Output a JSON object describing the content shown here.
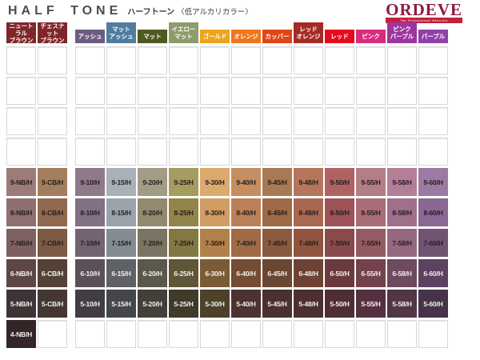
{
  "header": {
    "title_en": "HALF TONE",
    "title_jp": "ハーフトーン",
    "subtitle": "〈低アルカリカラー〉",
    "brand": {
      "name": "ORDEVE",
      "tagline": "The Professional Haircolor",
      "name_color": "#8e1a3d",
      "tagline_bg": "#c4203e"
    }
  },
  "columns": [
    {
      "label": "ニュートラル\nブラウン",
      "color": "#7f2629"
    },
    {
      "label": "チェスナット\nブラウン",
      "color": "#7f2629"
    },
    {
      "label": "アッシュ",
      "color": "#6d5c82"
    },
    {
      "label": "マット\nアッシュ",
      "color": "#517c9e"
    },
    {
      "label": "マット",
      "color": "#4e5a20"
    },
    {
      "label": "イエロー\nマット",
      "color": "#8e9c6d"
    },
    {
      "label": "ゴールド",
      "color": "#eca41c"
    },
    {
      "label": "オレンジ",
      "color": "#f0761c"
    },
    {
      "label": "カッパー",
      "color": "#e04613"
    },
    {
      "label": "レッド\nオレンジ",
      "color": "#a62a24"
    },
    {
      "label": "レッド",
      "color": "#e50b1e"
    },
    {
      "label": "ピンク",
      "color": "#da2b7f"
    },
    {
      "label": "ピンク\nパープル",
      "color": "#9c35a0"
    },
    {
      "label": "パープル",
      "color": "#8f41ab"
    }
  ],
  "grid": {
    "empty_row_count": 4,
    "columns_count": 14,
    "rows": [
      {
        "level": "9",
        "label_color": "#241f1f",
        "cells": [
          {
            "code": "9-NB/H",
            "color": "#9c7b79"
          },
          {
            "code": "9-CB/H",
            "color": "#a37e5d"
          },
          {
            "code": "9-10/H",
            "color": "#8f7a8b"
          },
          {
            "code": "9-15/H",
            "color": "#a8b0b8"
          },
          {
            "code": "9-20/H",
            "color": "#a29c87"
          },
          {
            "code": "9-25/H",
            "color": "#a79c5f"
          },
          {
            "code": "9-30/H",
            "color": "#dcaa6e"
          },
          {
            "code": "9-40/H",
            "color": "#c68e60"
          },
          {
            "code": "9-45/H",
            "color": "#a87a54"
          },
          {
            "code": "9-48/H",
            "color": "#b5765c"
          },
          {
            "code": "9-50/H",
            "color": "#b06263"
          },
          {
            "code": "9-55/H",
            "color": "#b37e85"
          },
          {
            "code": "9-58/H",
            "color": "#b37e97"
          },
          {
            "code": "9-60/H",
            "color": "#9b7ba3"
          }
        ]
      },
      {
        "level": "8",
        "label_color": "#241f1f",
        "cells": [
          {
            "code": "8-NB/H",
            "color": "#906f6f"
          },
          {
            "code": "8-CB/H",
            "color": "#91694f"
          },
          {
            "code": "8-10/H",
            "color": "#837084"
          },
          {
            "code": "8-15/H",
            "color": "#9aa3ac"
          },
          {
            "code": "8-20/H",
            "color": "#93896f"
          },
          {
            "code": "8-25/H",
            "color": "#918549"
          },
          {
            "code": "8-30/H",
            "color": "#d29d62"
          },
          {
            "code": "8-40/H",
            "color": "#bb8156"
          },
          {
            "code": "8-45/H",
            "color": "#9e6a47"
          },
          {
            "code": "8-48/H",
            "color": "#a96850"
          },
          {
            "code": "8-50/H",
            "color": "#9e5356"
          },
          {
            "code": "8-55/H",
            "color": "#a96d76"
          },
          {
            "code": "8-58/H",
            "color": "#a06f8c"
          },
          {
            "code": "8-60/H",
            "color": "#8b6793"
          }
        ]
      },
      {
        "level": "7",
        "label_color": "#241f1f",
        "cells": [
          {
            "code": "7-NB/H",
            "color": "#7d6060"
          },
          {
            "code": "7-CB/H",
            "color": "#7c5a43"
          },
          {
            "code": "7-10/H",
            "color": "#746371"
          },
          {
            "code": "7-15/H",
            "color": "#848b93"
          },
          {
            "code": "7-20/H",
            "color": "#7a7462"
          },
          {
            "code": "7-25/H",
            "color": "#837742"
          },
          {
            "code": "7-30/H",
            "color": "#b28149"
          },
          {
            "code": "7-40/H",
            "color": "#9f6a45"
          },
          {
            "code": "7-45/H",
            "color": "#8a5a3f"
          },
          {
            "code": "7-48/H",
            "color": "#91543f"
          },
          {
            "code": "7-50/H",
            "color": "#8a4a4b"
          },
          {
            "code": "7-55/H",
            "color": "#935b62"
          },
          {
            "code": "7-58/H",
            "color": "#966880"
          },
          {
            "code": "7-60/H",
            "color": "#705572"
          }
        ]
      },
      {
        "level": "6",
        "label_color": "#f4efeb",
        "cells": [
          {
            "code": "6-NB/H",
            "color": "#5e4646"
          },
          {
            "code": "6-CB/H",
            "color": "#544137"
          },
          {
            "code": "6-10/H",
            "color": "#5b5058"
          },
          {
            "code": "6-15/H",
            "color": "#5f6167"
          },
          {
            "code": "6-20/H",
            "color": "#5c574b"
          },
          {
            "code": "6-25/H",
            "color": "#5e5637"
          },
          {
            "code": "6-30/H",
            "color": "#7b5b36"
          },
          {
            "code": "6-40/H",
            "color": "#744c33"
          },
          {
            "code": "6-45/H",
            "color": "#6a4733"
          },
          {
            "code": "6-48/H",
            "color": "#6e4136"
          },
          {
            "code": "6-50/H",
            "color": "#6b3a3d"
          },
          {
            "code": "6-55/H",
            "color": "#73424d"
          },
          {
            "code": "6-58/H",
            "color": "#6d4a5f"
          },
          {
            "code": "6-60/H",
            "color": "#5c4161"
          }
        ]
      },
      {
        "level": "5",
        "label_color": "#f4efeb",
        "cells": [
          {
            "code": "5-NB/H",
            "color": "#403335"
          },
          {
            "code": "5-CB/H",
            "color": "#443731"
          },
          {
            "code": "5-10/H",
            "color": "#423c43"
          },
          {
            "code": "5-15/H",
            "color": "#45464c"
          },
          {
            "code": "5-20/H",
            "color": "#443f39"
          },
          {
            "code": "5-25/H",
            "color": "#3f3a29"
          },
          {
            "code": "5-30/H",
            "color": "#4d4129"
          },
          {
            "code": "5-40/H",
            "color": "#4c332f"
          },
          {
            "code": "5-45/H",
            "color": "#4a312d"
          },
          {
            "code": "5-48/H",
            "color": "#4c2f2f"
          },
          {
            "code": "5-50/H",
            "color": "#4e2e34"
          },
          {
            "code": "5-55/H",
            "color": "#553040"
          },
          {
            "code": "5-58/H",
            "color": "#503646"
          },
          {
            "code": "5-60/H",
            "color": "#463349"
          }
        ]
      },
      {
        "level": "4",
        "label_color": "#f4efeb",
        "cells": [
          {
            "code": "4-NB/H",
            "color": "#342528"
          },
          null,
          null,
          null,
          null,
          null,
          null,
          null,
          null,
          null,
          null,
          null,
          null,
          null
        ]
      }
    ]
  }
}
